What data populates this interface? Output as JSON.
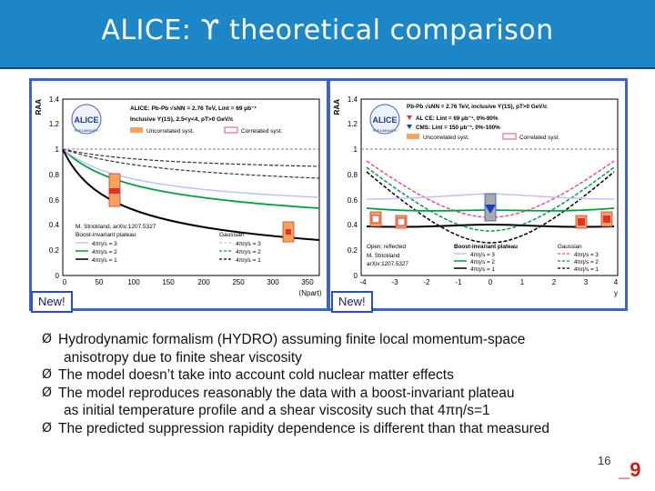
{
  "slide": {
    "title": "ALICE: ϒ theoretical comparison",
    "page_number": "16",
    "slide_id": "_9",
    "colors": {
      "title_bar": "#1c86c6",
      "panel_border": "#3a64c8",
      "accent_red": "#d21a1a"
    }
  },
  "left_panel": {
    "new_tag": "New!",
    "y_axis_label": "RAA",
    "x_axis_label": "⟨Npart⟩",
    "y_ticks": [
      "0",
      "0.2",
      "0.4",
      "0.6",
      "0.8",
      "1",
      "1.2",
      "1.4"
    ],
    "x_ticks": [
      "0",
      "50",
      "100",
      "150",
      "200",
      "250",
      "300",
      "350"
    ],
    "logo_text": "ALICE",
    "logo_sub": "PRELIMINARY",
    "legend_line1": "ALICE: Pb-Pb √sNN = 2.76 TeV, Lint = 69 μb⁻¹",
    "legend_line2": "Inclusive ϒ(1S), 2.5<y<4, pT>0 GeV/c",
    "legend_uncorr": "Uncorrelated syst.",
    "legend_corr": "Correlated syst.",
    "model_ref1": "M. Strickland, arXiv:1207.5327",
    "model_ref2": "Boost-invariant plateau",
    "gaussian_label": "Gaussian",
    "curve_labels": [
      "4πη/s = 3",
      "4πη/s = 2",
      "4πη/s = 1"
    ]
  },
  "right_panel": {
    "new_tag": "New!",
    "y_axis_label": "RAA",
    "x_axis_label": "y",
    "y_ticks": [
      "0",
      "0.2",
      "0.4",
      "0.6",
      "0.8",
      "1",
      "1.2",
      "1.4"
    ],
    "x_ticks": [
      "-4",
      "-3",
      "-2",
      "-1",
      "0",
      "1",
      "2",
      "3",
      "4"
    ],
    "logo_text": "ALICE",
    "logo_sub": "PRELIMINARY",
    "legend_line1": "Pb-Pb √sNN = 2.76 TeV, inclusive ϒ(1S), pT>0 GeV/c",
    "legend_line2": "AL CE: Lint = 69 μb⁻¹, 0%-90%",
    "legend_line3": "CMS: Lint = 150 μb⁻¹, 0%-100%",
    "legend_uncorr": "Uncorrelated syst.",
    "legend_corr": "Correlated syst.",
    "open_reflected": "Open: reflected",
    "model_ref1": "M. Strickland",
    "model_ref2": "arXiv:1207.5327",
    "boost_label": "Boost-invariant plateau",
    "gaussian_label": "Gaussian",
    "curve_labels": [
      "4πη/s = 3",
      "4πη/s = 2",
      "4πη/s = 1"
    ]
  },
  "bullets": [
    {
      "line1": "Hydrodynamic formalism (HYDRO) assuming finite local momentum-space",
      "line2": "anisotropy due to finite shear viscosity"
    },
    {
      "line1": "The model doesn’t take into account cold nuclear matter effects",
      "line2": ""
    },
    {
      "line1": "The model reproduces reasonably the data with a boost-invariant plateau",
      "line2": "as initial temperature profile and a shear viscosity such that 4πη/s=1"
    },
    {
      "line1": "The predicted suppression rapidity dependence is different than that measured",
      "line2": ""
    }
  ],
  "bullet_glyph": "Ø"
}
